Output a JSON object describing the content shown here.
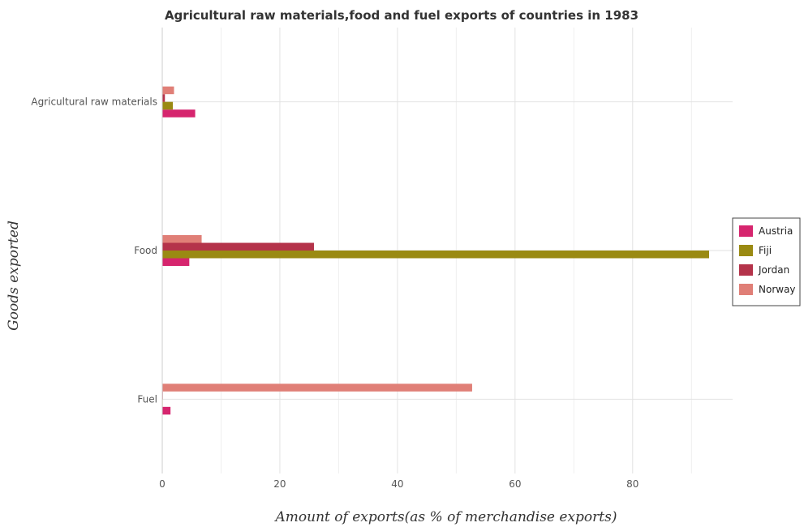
{
  "chart_data": {
    "type": "bar",
    "orientation": "horizontal",
    "title": "Agricultural raw materials,food and fuel exports of countries in 1983",
    "xlabel": "Amount of exports(as % of merchandise exports)",
    "ylabel": "Goods exported",
    "categories": [
      "Agricultural raw materials",
      "Food",
      "Fuel"
    ],
    "xlim": [
      0,
      97
    ],
    "xticks": [
      0,
      20,
      40,
      60,
      80
    ],
    "grid": true,
    "legend_position": "right",
    "series": [
      {
        "name": "Austria",
        "color": "#d6256e",
        "values": [
          5.6,
          4.6,
          1.4
        ]
      },
      {
        "name": "Fiji",
        "color": "#9a8a12",
        "values": [
          1.8,
          93.0,
          0.02
        ]
      },
      {
        "name": "Jordan",
        "color": "#b4334a",
        "values": [
          0.45,
          25.8,
          0.1
        ]
      },
      {
        "name": "Norway",
        "color": "#e07f77",
        "values": [
          2.0,
          6.7,
          52.7
        ]
      }
    ]
  }
}
